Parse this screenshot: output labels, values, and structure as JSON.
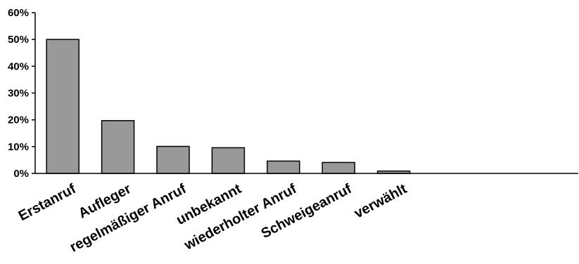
{
  "chart_data": {
    "type": "bar",
    "categories": [
      "Erstanruf",
      "Aufleger",
      "regelmäßiger Anruf",
      "unbekannt",
      "wiederholter Anruf",
      "Schweigeanruf",
      "verwählt"
    ],
    "values": [
      50.0,
      19.7,
      10.1,
      9.6,
      4.6,
      4.1,
      0.9
    ],
    "ylim": [
      0,
      60
    ],
    "yticks": [
      0,
      10,
      20,
      30,
      40,
      50,
      60
    ],
    "ytick_labels": [
      "0%",
      "10%",
      "20%",
      "30%",
      "40%",
      "50%",
      "60%"
    ],
    "grid": false,
    "legend": "none",
    "colors": {
      "bar_fill": "#999999",
      "bar_stroke": "#000000",
      "axis": "#000000",
      "text": "#000000"
    }
  }
}
